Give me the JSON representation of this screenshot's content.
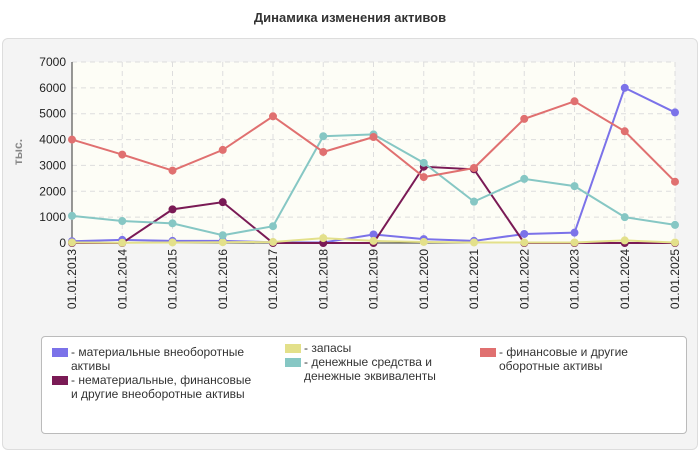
{
  "chart_data": {
    "type": "line",
    "title": "Динамика изменения активов",
    "ylabel": "тыс.",
    "ylim": [
      0,
      7000
    ],
    "yticks": [
      "0",
      "1000",
      "2000",
      "3000",
      "4000",
      "5000",
      "6000",
      "7000"
    ],
    "grid": true,
    "legend_position": "bottom",
    "categories": [
      "01.01.2013",
      "01.01.2014",
      "01.01.2015",
      "01.01.2016",
      "01.01.2017",
      "01.01.2018",
      "01.01.2019",
      "01.01.2020",
      "01.01.2021",
      "01.01.2022",
      "01.01.2023",
      "01.01.2024",
      "01.01.2025"
    ],
    "series": [
      {
        "name": "- материальные внеоборотные активы",
        "color": "#7b72e9",
        "values": [
          70,
          120,
          80,
          80,
          30,
          20,
          330,
          150,
          80,
          350,
          400,
          6000,
          5050
        ]
      },
      {
        "name": "- нематериальные, финансовые и другие внеоборотные активы",
        "color": "#7a1a55",
        "values": [
          0,
          0,
          1300,
          1580,
          0,
          0,
          0,
          2950,
          2850,
          0,
          0,
          0,
          0
        ]
      },
      {
        "name": "- запасы",
        "color": "#e3e08a",
        "values": [
          20,
          10,
          20,
          30,
          40,
          190,
          80,
          40,
          20,
          20,
          20,
          100,
          20
        ]
      },
      {
        "name": "- денежные средства и денежные эквиваленты",
        "color": "#86c7c4",
        "values": [
          1050,
          850,
          760,
          300,
          650,
          4130,
          4200,
          3100,
          1600,
          2480,
          2200,
          1000,
          700
        ]
      },
      {
        "name": "- финансовые и другие оборотные активы",
        "color": "#e07070",
        "values": [
          4000,
          3420,
          2800,
          3600,
          4900,
          3520,
          4100,
          2550,
          2900,
          4800,
          5480,
          4320,
          2370
        ]
      }
    ]
  }
}
